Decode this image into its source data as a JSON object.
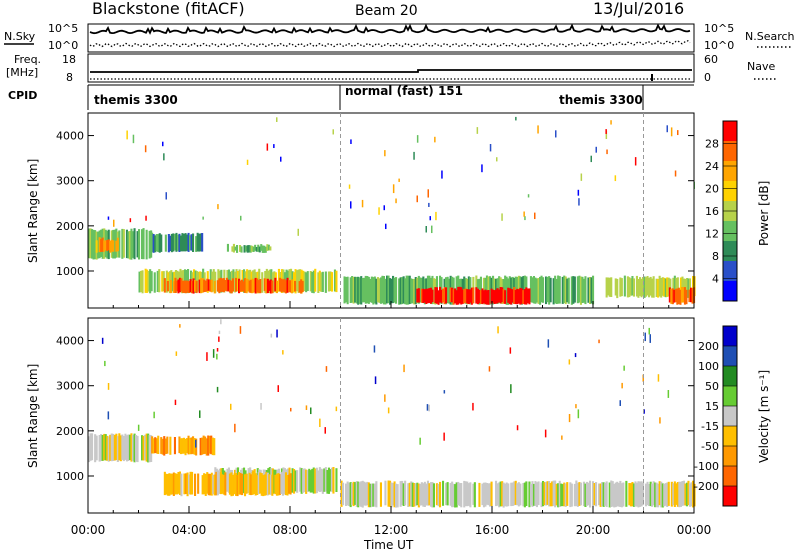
{
  "header": {
    "station": "Blackstone (fitACF)",
    "beam": "Beam 20",
    "date": "13/Jul/2016"
  },
  "sky_panel": {
    "left_label": "N.Sky",
    "left_tick_top": "10^5",
    "left_tick_bottom": "10^0",
    "right_tick_top": "10^5",
    "right_tick_bottom": "10^0",
    "right_label": "N.Search"
  },
  "freq_panel": {
    "left_label_top": "Freq.",
    "left_label_bottom": "[MHz]",
    "left_tick_top": "18",
    "left_tick_bottom": "8",
    "right_tick_top": "60",
    "right_tick_bottom": "0",
    "right_label": "Nave"
  },
  "cpid_panel": {
    "label": "CPID",
    "segments": [
      {
        "start_hour": 0.0,
        "end_hour": 10.0,
        "text": "themis 3300"
      },
      {
        "start_hour": 10.0,
        "end_hour": 22.0,
        "text": "normal (fast) 151"
      },
      {
        "start_hour": 22.0,
        "end_hour": 24.0,
        "text": "themis 3300"
      }
    ]
  },
  "colors": {
    "power": [
      "#0000ff",
      "#2a4fc8",
      "#2e8b57",
      "#66c060",
      "#b7d24a",
      "#ffd200",
      "#ffa500",
      "#ff6600",
      "#ff0000"
    ],
    "velocity": [
      "#ff0000",
      "#ff6600",
      "#ff9900",
      "#ffbf00",
      "#c8c8c8",
      "#66cc33",
      "#228b22",
      "#1f4fb4",
      "#0000cc"
    ]
  },
  "chart_data": [
    {
      "type": "heatmap",
      "panel": "power",
      "ylabel": "Slant Range [km]",
      "xlabel": "Time UT",
      "x_ticks": [
        "00:00",
        "04:00",
        "08:00",
        "12:00",
        "16:00",
        "20:00",
        "00:00"
      ],
      "xlim_hours": [
        0,
        24
      ],
      "ylim": [
        180,
        4500
      ],
      "y_ticks": [
        1000,
        2000,
        3000,
        4000
      ],
      "colorbar_label": "Power [dB]",
      "colorbar_ticks": [
        "4",
        "8",
        "12",
        "16",
        "20",
        "24",
        "28"
      ],
      "vertical_markers_hours": [
        10.0,
        22.0
      ],
      "regions": [
        {
          "t0": 0.0,
          "t1": 2.5,
          "r0": 1250,
          "r1": 1950,
          "level": 3
        },
        {
          "t0": 0.3,
          "t1": 1.2,
          "r0": 1400,
          "r1": 1750,
          "level": 6
        },
        {
          "t0": 2.5,
          "t1": 4.5,
          "r0": 1400,
          "r1": 1850,
          "level": 2
        },
        {
          "t0": 5.5,
          "t1": 7.2,
          "r0": 1400,
          "r1": 1600,
          "level": 3
        },
        {
          "t0": 2.0,
          "t1": 9.8,
          "r0": 500,
          "r1": 1050,
          "level": 4
        },
        {
          "t0": 3.0,
          "t1": 8.5,
          "r0": 500,
          "r1": 850,
          "level": 7
        },
        {
          "t0": 10.0,
          "t1": 20.0,
          "r0": 250,
          "r1": 900,
          "level": 3
        },
        {
          "t0": 13.0,
          "t1": 17.5,
          "r0": 250,
          "r1": 650,
          "level": 8
        },
        {
          "t0": 20.5,
          "t1": 24.0,
          "r0": 400,
          "r1": 900,
          "level": 4
        },
        {
          "t0": 23.0,
          "t1": 24.0,
          "r0": 250,
          "r1": 650,
          "level": 7
        }
      ]
    },
    {
      "type": "heatmap",
      "panel": "velocity",
      "ylabel": "Slant Range [km]",
      "xlabel": "Time UT",
      "x_ticks": [
        "00:00",
        "04:00",
        "08:00",
        "12:00",
        "16:00",
        "20:00",
        "00:00"
      ],
      "xlim_hours": [
        0,
        24
      ],
      "ylim": [
        180,
        4500
      ],
      "y_ticks": [
        1000,
        2000,
        3000,
        4000
      ],
      "colorbar_label": "Velocity [m s⁻¹]",
      "colorbar_ticks": [
        "200",
        "100",
        "50",
        "15",
        "-15",
        "-50",
        "-100",
        "-200"
      ],
      "vertical_markers_hours": [
        10.0,
        22.0
      ],
      "regions": [
        {
          "t0": 0.0,
          "t1": 2.5,
          "r0": 1300,
          "r1": 1950,
          "level": 4
        },
        {
          "t0": 2.5,
          "t1": 5.0,
          "r0": 1450,
          "r1": 1900,
          "level": 2
        },
        {
          "t0": 5.0,
          "t1": 9.8,
          "r0": 600,
          "r1": 1200,
          "level": 4
        },
        {
          "t0": 3.0,
          "t1": 8.0,
          "r0": 550,
          "r1": 1100,
          "level": 3
        },
        {
          "t0": 10.0,
          "t1": 24.0,
          "r0": 300,
          "r1": 900,
          "level": 4
        }
      ]
    }
  ]
}
